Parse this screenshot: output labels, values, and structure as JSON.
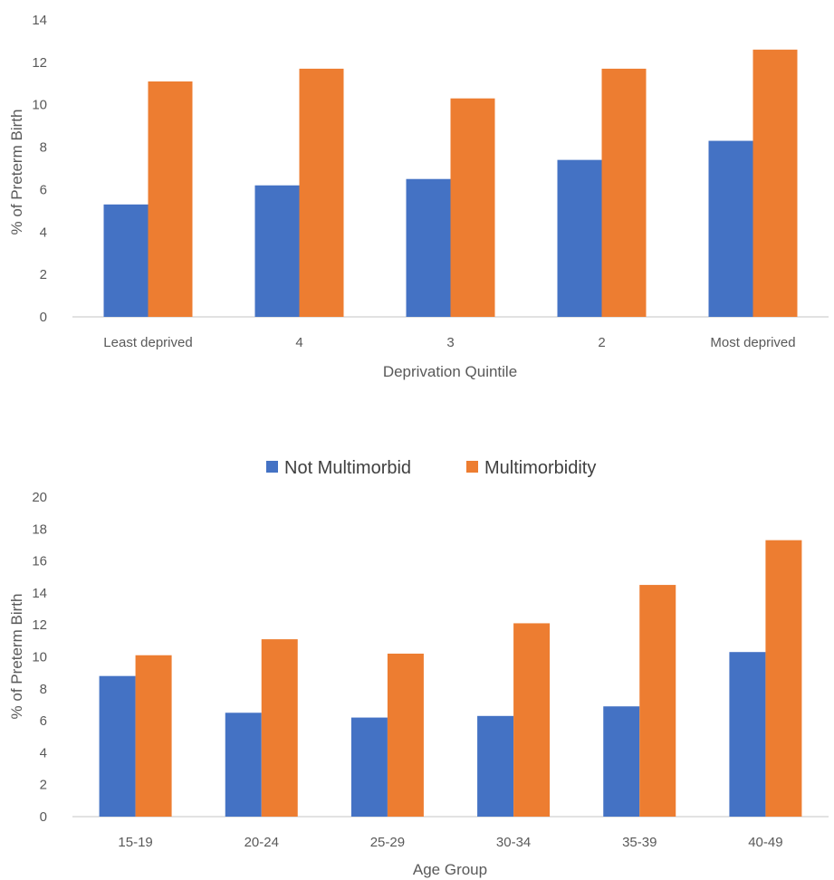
{
  "chart_data": [
    {
      "type": "bar",
      "categories": [
        "Least deprived",
        "4",
        "3",
        "2",
        "Most deprived"
      ],
      "series": [
        {
          "name": "Not Multimorbid",
          "values": [
            5.3,
            6.2,
            6.5,
            7.4,
            8.3
          ]
        },
        {
          "name": "Multimorbidity",
          "values": [
            11.1,
            11.7,
            10.3,
            11.7,
            12.6
          ]
        }
      ],
      "xlabel": "Deprivation Quintile",
      "ylabel": "% of Preterm Birth",
      "ylim": [
        0,
        14
      ],
      "yticks": [
        0,
        2,
        4,
        6,
        8,
        10,
        12,
        14
      ],
      "grid": false,
      "legend_position": "none"
    },
    {
      "type": "bar",
      "categories": [
        "15-19",
        "20-24",
        "25-29",
        "30-34",
        "35-39",
        "40-49"
      ],
      "series": [
        {
          "name": "Not Multimorbid",
          "values": [
            8.8,
            6.5,
            6.2,
            6.3,
            6.9,
            10.3
          ]
        },
        {
          "name": "Multimorbidity",
          "values": [
            10.1,
            11.1,
            10.2,
            12.1,
            14.5,
            17.3
          ]
        }
      ],
      "xlabel": "Age Group",
      "ylabel": "% of Preterm Birth",
      "ylim": [
        0,
        20
      ],
      "yticks": [
        0,
        2,
        4,
        6,
        8,
        10,
        12,
        14,
        16,
        18,
        20
      ],
      "grid": false,
      "legend_position": "top-center"
    }
  ],
  "legend": {
    "items": [
      {
        "label": "Not Multimorbid",
        "color": "#4472C4"
      },
      {
        "label": "Multimorbidity",
        "color": "#ED7D31"
      }
    ]
  },
  "colors": {
    "series_1": "#4472C4",
    "series_2": "#ED7D31",
    "axis": "#D9D9D9",
    "text": "#595959"
  }
}
